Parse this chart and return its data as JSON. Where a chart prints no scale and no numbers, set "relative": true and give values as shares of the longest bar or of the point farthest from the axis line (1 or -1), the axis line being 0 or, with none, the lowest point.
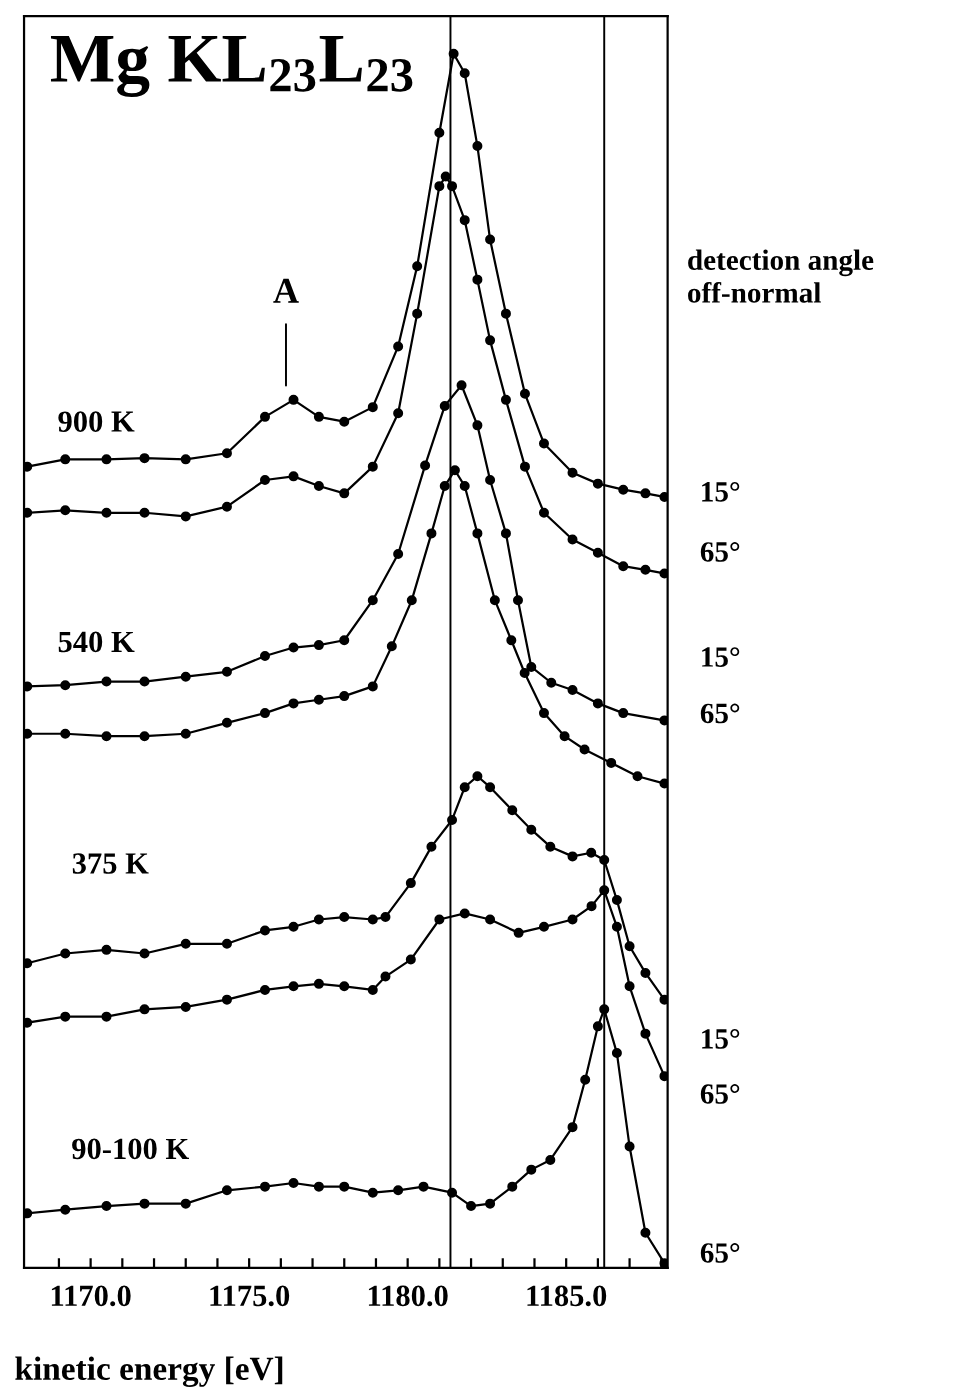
{
  "chart_data": {
    "type": "line",
    "title": "Mg KL$_{23}$L$_{23}$",
    "xlabel": "kinetic energy [eV]",
    "relative": true,
    "marker": "circle",
    "line_style": "solid",
    "grid": false,
    "legend": false,
    "tick_labels": "x",
    "xlim": [
      1167.9,
      1188.2
    ],
    "xticks": [
      {
        "value": 1169,
        "label": null
      },
      {
        "value": 1170,
        "label": "1170.0"
      },
      {
        "value": 1171,
        "label": null
      },
      {
        "value": 1172,
        "label": null
      },
      {
        "value": 1173,
        "label": null
      },
      {
        "value": 1174,
        "label": null
      },
      {
        "value": 1175,
        "label": "1175.0"
      },
      {
        "value": 1176,
        "label": null
      },
      {
        "value": 1177,
        "label": null
      },
      {
        "value": 1178,
        "label": null
      },
      {
        "value": 1179,
        "label": null
      },
      {
        "value": 1180,
        "label": "1180.0"
      },
      {
        "value": 1181,
        "label": null
      },
      {
        "value": 1182,
        "label": null
      },
      {
        "value": 1183,
        "label": null
      },
      {
        "value": 1184,
        "label": null
      },
      {
        "value": 1185,
        "label": "1185.0"
      },
      {
        "value": 1186,
        "label": null
      },
      {
        "value": 1187,
        "label": null
      },
      {
        "value": 1188,
        "label": null
      }
    ],
    "series": [
      {
        "color": "#000000",
        "x": [
          1168.0,
          1169.2,
          1170.5,
          1171.7,
          1173.0,
          1174.3,
          1175.5,
          1176.4,
          1177.2,
          1178.0,
          1178.9,
          1179.7,
          1180.3,
          1181.0,
          1181.45,
          1181.8,
          1182.2,
          1182.6,
          1183.1,
          1183.7,
          1184.3,
          1185.2,
          1186.0,
          1186.8,
          1187.5,
          1188.1
        ],
        "values": [
          0.66,
          0.666,
          0.666,
          0.667,
          0.666,
          0.671,
          0.701,
          0.715,
          0.701,
          0.697,
          0.709,
          0.759,
          0.825,
          0.935,
          1.0,
          0.984,
          0.924,
          0.847,
          0.786,
          0.72,
          0.679,
          0.655,
          0.646,
          0.641,
          0.638,
          0.635
        ]
      },
      {
        "color": "#000000",
        "x": [
          1168.0,
          1169.2,
          1170.5,
          1171.7,
          1173.0,
          1174.3,
          1175.5,
          1176.4,
          1177.2,
          1178.0,
          1178.9,
          1179.7,
          1180.3,
          1181.0,
          1181.2,
          1181.4,
          1181.8,
          1182.2,
          1182.6,
          1183.1,
          1183.7,
          1184.3,
          1185.2,
          1186.0,
          1186.8,
          1187.5,
          1188.1
        ],
        "values": [
          0.622,
          0.624,
          0.622,
          0.622,
          0.619,
          0.627,
          0.649,
          0.652,
          0.644,
          0.638,
          0.66,
          0.704,
          0.786,
          0.891,
          0.899,
          0.891,
          0.863,
          0.814,
          0.764,
          0.715,
          0.66,
          0.622,
          0.6,
          0.589,
          0.578,
          0.575,
          0.572
        ]
      },
      {
        "color": "#000000",
        "x": [
          1168.0,
          1169.2,
          1170.5,
          1171.7,
          1173.0,
          1174.3,
          1175.5,
          1176.4,
          1177.2,
          1178.0,
          1178.9,
          1179.7,
          1180.55,
          1181.17,
          1181.7,
          1182.2,
          1182.6,
          1183.1,
          1183.48,
          1183.9,
          1184.53,
          1185.2,
          1186.0,
          1186.8,
          1188.1
        ],
        "values": [
          0.479,
          0.48,
          0.483,
          0.483,
          0.487,
          0.491,
          0.504,
          0.511,
          0.513,
          0.517,
          0.55,
          0.588,
          0.661,
          0.71,
          0.727,
          0.694,
          0.649,
          0.605,
          0.55,
          0.495,
          0.482,
          0.476,
          0.465,
          0.457,
          0.451
        ]
      },
      {
        "color": "#000000",
        "x": [
          1168.0,
          1169.2,
          1170.5,
          1171.7,
          1173.0,
          1174.3,
          1175.5,
          1176.4,
          1177.2,
          1178.0,
          1178.9,
          1179.5,
          1180.13,
          1180.75,
          1181.17,
          1181.49,
          1181.8,
          1182.2,
          1182.75,
          1183.27,
          1183.69,
          1184.3,
          1184.95,
          1185.58,
          1186.42,
          1187.25,
          1188.1
        ],
        "values": [
          0.44,
          0.44,
          0.438,
          0.438,
          0.44,
          0.449,
          0.457,
          0.465,
          0.468,
          0.471,
          0.479,
          0.512,
          0.55,
          0.605,
          0.644,
          0.657,
          0.644,
          0.605,
          0.55,
          0.517,
          0.49,
          0.457,
          0.438,
          0.427,
          0.416,
          0.405,
          0.399
        ]
      },
      {
        "color": "#000000",
        "x": [
          1168.0,
          1169.2,
          1170.5,
          1171.7,
          1173.0,
          1174.3,
          1175.5,
          1176.4,
          1177.2,
          1178.0,
          1178.9,
          1179.3,
          1180.1,
          1180.75,
          1181.4,
          1181.8,
          1182.2,
          1182.6,
          1183.3,
          1183.9,
          1184.5,
          1185.2,
          1185.79,
          1186.2,
          1186.6,
          1187.0,
          1187.5,
          1188.1
        ],
        "values": [
          0.251,
          0.259,
          0.262,
          0.259,
          0.267,
          0.267,
          0.278,
          0.281,
          0.287,
          0.289,
          0.287,
          0.289,
          0.317,
          0.347,
          0.369,
          0.396,
          0.405,
          0.396,
          0.377,
          0.361,
          0.347,
          0.339,
          0.342,
          0.336,
          0.303,
          0.265,
          0.243,
          0.221
        ]
      },
      {
        "color": "#000000",
        "x": [
          1168.0,
          1169.2,
          1170.5,
          1171.7,
          1173.0,
          1174.3,
          1175.5,
          1176.4,
          1177.2,
          1178.0,
          1178.9,
          1179.3,
          1180.1,
          1181.0,
          1181.8,
          1182.6,
          1183.5,
          1184.3,
          1185.2,
          1185.8,
          1186.2,
          1186.6,
          1187.0,
          1187.5,
          1188.1
        ],
        "values": [
          0.202,
          0.207,
          0.207,
          0.213,
          0.215,
          0.221,
          0.229,
          0.232,
          0.234,
          0.232,
          0.229,
          0.24,
          0.254,
          0.287,
          0.292,
          0.287,
          0.276,
          0.281,
          0.287,
          0.298,
          0.311,
          0.281,
          0.232,
          0.193,
          0.158
        ]
      },
      {
        "color": "#000000",
        "x": [
          1168.0,
          1169.2,
          1170.5,
          1171.7,
          1173.0,
          1174.3,
          1175.5,
          1176.4,
          1177.2,
          1178.0,
          1178.9,
          1179.7,
          1180.5,
          1181.4,
          1182.0,
          1182.6,
          1183.3,
          1183.9,
          1184.5,
          1185.2,
          1185.6,
          1186.0,
          1186.2,
          1186.6,
          1187.0,
          1187.5,
          1188.1
        ],
        "values": [
          0.045,
          0.048,
          0.051,
          0.053,
          0.053,
          0.064,
          0.067,
          0.07,
          0.067,
          0.067,
          0.062,
          0.064,
          0.067,
          0.062,
          0.051,
          0.053,
          0.067,
          0.081,
          0.089,
          0.116,
          0.155,
          0.199,
          0.213,
          0.177,
          0.1,
          0.029,
          0.004
        ]
      }
    ],
    "ref_lines": [
      {
        "axis": "x",
        "value": 1181.35,
        "color": "#000000"
      },
      {
        "axis": "x",
        "value": 1186.2,
        "color": "#000000"
      }
    ],
    "annotations": [
      "A",
      "900 K",
      "540 K",
      "375 K",
      "90-100 K",
      "detection angle\noff-normal",
      "15°",
      "65°",
      "15°",
      "65°",
      "15°",
      "65°",
      "65°"
    ]
  }
}
